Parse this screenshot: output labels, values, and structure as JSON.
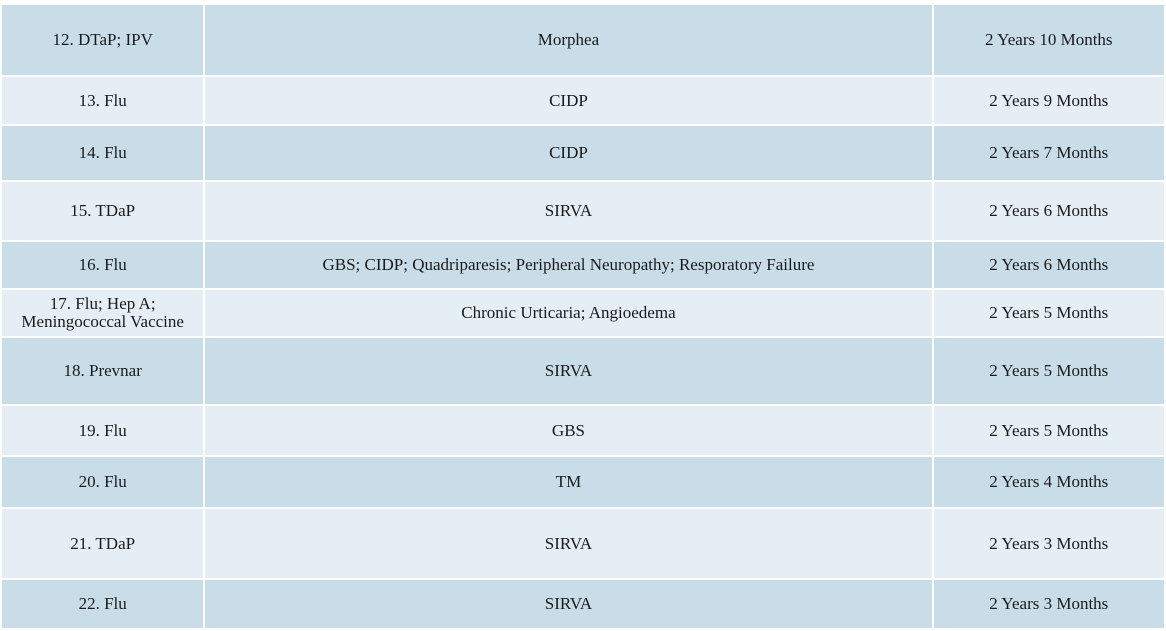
{
  "table": {
    "rows": [
      {
        "vaccine": "12. DTaP; IPV",
        "injury": "Morphea",
        "duration": "2 Years 10 Months"
      },
      {
        "vaccine": "13. Flu",
        "injury": "CIDP",
        "duration": "2 Years 9 Months"
      },
      {
        "vaccine": "14. Flu",
        "injury": "CIDP",
        "duration": "2 Years 7 Months"
      },
      {
        "vaccine": "15. TDaP",
        "injury": "SIRVA",
        "duration": "2 Years 6 Months"
      },
      {
        "vaccine": "16. Flu",
        "injury": "GBS; CIDP; Quadriparesis; Peripheral Neuropathy; Resporatory Failure",
        "duration": "2 Years 6 Months"
      },
      {
        "vaccine_line1": "17. Flu; Hep A;",
        "vaccine_line2": "Meningococcal Vaccine",
        "injury": "Chronic Urticaria; Angioedema",
        "duration": "2 Years 5 Months"
      },
      {
        "vaccine": "18. Prevnar",
        "injury": "SIRVA",
        "duration": "2 Years 5 Months"
      },
      {
        "vaccine": "19. Flu",
        "injury": "GBS",
        "duration": "2 Years 5 Months"
      },
      {
        "vaccine": "20. Flu",
        "injury": "TM",
        "duration": "2 Years 4 Months"
      },
      {
        "vaccine": "21. TDaP",
        "injury": "SIRVA",
        "duration": "2 Years 3 Months"
      },
      {
        "vaccine": "22. Flu",
        "injury": "SIRVA",
        "duration": "2 Years 3 Months"
      }
    ]
  },
  "colors": {
    "row_dark": "#c9dde9",
    "row_light": "#e6eef5",
    "grid_line": "#ffffff",
    "text": "#1a1a1a"
  }
}
